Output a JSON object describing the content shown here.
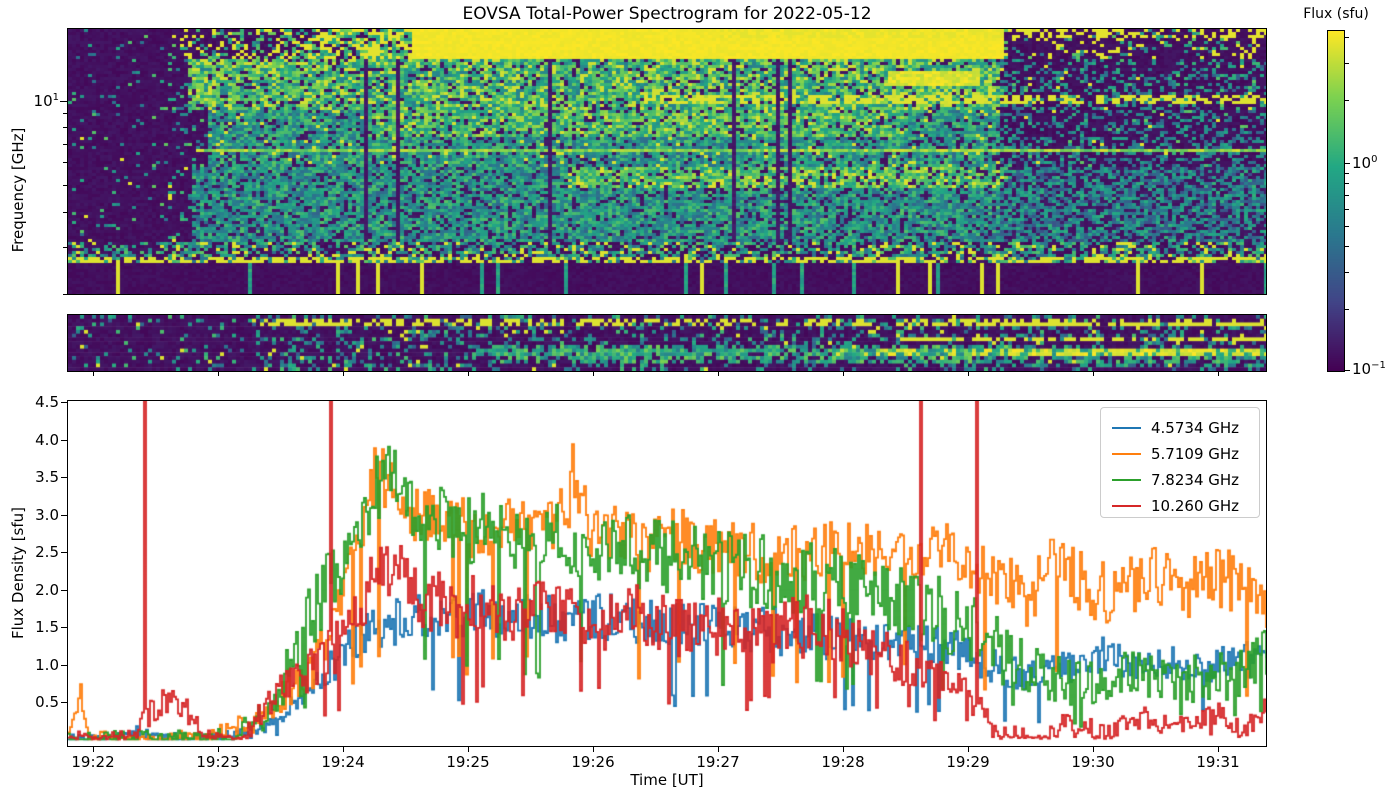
{
  "figure": {
    "title": "EOVSA Total-Power Spectrogram for 2022-05-12"
  },
  "spectrogram": {
    "ylabel": "Frequency [GHz]",
    "ytick_major": {
      "base": "10",
      "exp": "1"
    },
    "y_scale": "log",
    "freq_range_ghz": [
      2.0,
      18.0
    ]
  },
  "colorbar": {
    "label": "Flux (sfu)",
    "colormap": "viridis",
    "scale": "log",
    "range_sfu": [
      0.1,
      4.3
    ],
    "ticks": [
      {
        "base": "10",
        "exp": "0"
      },
      {
        "base": "10",
        "exp": "−1"
      }
    ]
  },
  "timeseries": {
    "ylabel": "Flux Density [sfu]",
    "xlabel": "Time [UT]",
    "yticks": [
      "0.5",
      "1.0",
      "1.5",
      "2.0",
      "2.5",
      "3.0",
      "3.5",
      "4.0",
      "4.5"
    ],
    "xticks": [
      "19:22",
      "19:23",
      "19:24",
      "19:25",
      "19:26",
      "19:27",
      "19:28",
      "19:29",
      "19:30",
      "19:31"
    ]
  },
  "chart_data": [
    {
      "type": "heatmap",
      "name": "total-power-spectrogram-main",
      "title": "EOVSA Total-Power Spectrogram for 2022-05-12",
      "ylabel": "Frequency [GHz]",
      "y_scale": "log",
      "y_range_ghz": [
        2.0,
        18.0
      ],
      "ytick_labels": [
        "10^1"
      ],
      "x_range_ut": [
        "19:21:47",
        "19:31:24"
      ],
      "xtick_labels": [
        "19:22",
        "19:23",
        "19:24",
        "19:25",
        "19:26",
        "19:27",
        "19:28",
        "19:29",
        "19:30",
        "19:31"
      ],
      "colormap": "viridis",
      "color_scale": "log",
      "clim_sfu": [
        0.1,
        4.3
      ],
      "colorbar_label": "Flux (sfu)",
      "features": [
        "quiet dark-purple background with sparse teal speckles before ~19:22:40",
        "broadband radio burst from ~19:22:40 to ~19:29:15 spanning 2-18 GHz",
        "saturated yellow band above ~13 GHz from ~19:24:30 to ~19:29:15",
        "dense green/teal emission between ~3 and ~10 GHz continuing to 19:31",
        "continuous bright horizontal streak near 6.7 GHz across the burst",
        "narrow dashed yellow streak near 10 GHz persisting after 19:29",
        "vertical RFI stripes (teal/yellow) in the lowest rows near 2 GHz"
      ],
      "render_hints": {
        "seed": 70,
        "cols": 300,
        "rows": 89
      }
    },
    {
      "type": "heatmap",
      "name": "total-power-spectrogram-low-band",
      "x_range_ut": [
        "19:21:47",
        "19:31:24"
      ],
      "colormap": "viridis",
      "color_scale": "log",
      "clim_sfu": [
        0.1,
        4.3
      ],
      "features": [
        "separate low-frequency band strip below the main spectrogram",
        "sparse speckles before ~19:23:20",
        "dashed yellow horizontal streaks in the upper rows after ~19:23",
        "dense teal emission 19:25-19:31",
        "continuous bright yellow horizontal lines in the right third after ~19:29"
      ],
      "render_hints": {
        "seed": 131,
        "cols": 300,
        "rows": 15
      }
    },
    {
      "type": "line",
      "name": "flux-density-timeseries",
      "xlabel": "Time [UT]",
      "ylabel": "Flux Density [sfu]",
      "ylim": [
        0,
        4.5
      ],
      "ytick_labels": [
        "0.5",
        "1.0",
        "1.5",
        "2.0",
        "2.5",
        "3.0",
        "3.5",
        "4.0",
        "4.5"
      ],
      "xtick_labels": [
        "19:22",
        "19:23",
        "19:24",
        "19:25",
        "19:26",
        "19:27",
        "19:28",
        "19:29",
        "19:30",
        "19:31"
      ],
      "x_minutes_after_1922_range": [
        -0.21,
        9.39
      ],
      "legend_position": "upper right",
      "series": [
        {
          "name": "4.5734 GHz",
          "color": "#1f77b4",
          "noise_amp": 0.32,
          "spikes": [],
          "envelope_t_min_value_sfu": [
            [
              -0.21,
              0.02
            ],
            [
              0.1,
              0.02
            ],
            [
              0.35,
              0.12
            ],
            [
              0.5,
              0.03
            ],
            [
              1.0,
              0.04
            ],
            [
              1.35,
              0.15
            ],
            [
              1.6,
              0.5
            ],
            [
              1.8,
              0.8
            ],
            [
              2.0,
              1.2
            ],
            [
              2.2,
              1.5
            ],
            [
              2.5,
              1.6
            ],
            [
              2.9,
              1.7
            ],
            [
              3.3,
              1.7
            ],
            [
              3.7,
              1.6
            ],
            [
              4.1,
              1.65
            ],
            [
              4.5,
              1.55
            ],
            [
              4.9,
              1.5
            ],
            [
              5.3,
              1.5
            ],
            [
              5.7,
              1.4
            ],
            [
              6.1,
              1.35
            ],
            [
              6.5,
              1.4
            ],
            [
              6.9,
              1.2
            ],
            [
              7.2,
              1.0
            ],
            [
              7.5,
              0.85
            ],
            [
              7.8,
              1.0
            ],
            [
              8.1,
              1.15
            ],
            [
              8.4,
              0.95
            ],
            [
              8.7,
              1.05
            ],
            [
              9.0,
              1.0
            ],
            [
              9.39,
              1.15
            ]
          ]
        },
        {
          "name": "5.7109 GHz",
          "color": "#ff7f0e",
          "noise_amp": 0.42,
          "spikes": [
            [
              -0.12,
              0.75
            ],
            [
              1.55,
              0.95
            ],
            [
              3.82,
              3.95
            ]
          ],
          "envelope_t_min_value_sfu": [
            [
              -0.21,
              0.03
            ],
            [
              -0.12,
              0.55
            ],
            [
              -0.05,
              0.03
            ],
            [
              0.4,
              0.03
            ],
            [
              0.9,
              0.05
            ],
            [
              1.3,
              0.3
            ],
            [
              1.55,
              0.7
            ],
            [
              1.75,
              1.0
            ],
            [
              1.95,
              1.7
            ],
            [
              2.1,
              2.7
            ],
            [
              2.25,
              3.6
            ],
            [
              2.4,
              3.4
            ],
            [
              2.6,
              3.0
            ],
            [
              2.85,
              2.8
            ],
            [
              3.1,
              2.85
            ],
            [
              3.4,
              2.8
            ],
            [
              3.65,
              2.9
            ],
            [
              3.82,
              3.2
            ],
            [
              4.0,
              2.8
            ],
            [
              4.3,
              2.65
            ],
            [
              4.6,
              2.7
            ],
            [
              4.9,
              2.6
            ],
            [
              5.2,
              2.55
            ],
            [
              5.5,
              2.45
            ],
            [
              5.8,
              2.5
            ],
            [
              6.1,
              2.6
            ],
            [
              6.4,
              2.55
            ],
            [
              6.7,
              2.5
            ],
            [
              7.0,
              2.45
            ],
            [
              7.25,
              2.1
            ],
            [
              7.5,
              1.9
            ],
            [
              7.65,
              2.5
            ],
            [
              7.9,
              2.1
            ],
            [
              8.15,
              1.9
            ],
            [
              8.45,
              2.3
            ],
            [
              8.7,
              2.0
            ],
            [
              8.95,
              2.2
            ],
            [
              9.2,
              2.1
            ],
            [
              9.39,
              1.8
            ]
          ]
        },
        {
          "name": "7.8234 GHz",
          "color": "#2ca02c",
          "noise_amp": 0.5,
          "spikes": [],
          "envelope_t_min_value_sfu": [
            [
              -0.21,
              0.02
            ],
            [
              0.8,
              0.03
            ],
            [
              1.15,
              0.1
            ],
            [
              1.4,
              0.45
            ],
            [
              1.6,
              1.1
            ],
            [
              1.8,
              1.9
            ],
            [
              2.0,
              2.4
            ],
            [
              2.15,
              3.0
            ],
            [
              2.3,
              3.5
            ],
            [
              2.45,
              3.3
            ],
            [
              2.7,
              3.0
            ],
            [
              3.0,
              2.85
            ],
            [
              3.3,
              2.75
            ],
            [
              3.6,
              2.8
            ],
            [
              3.9,
              2.65
            ],
            [
              4.2,
              2.55
            ],
            [
              4.5,
              2.5
            ],
            [
              4.8,
              2.4
            ],
            [
              5.1,
              2.3
            ],
            [
              5.4,
              2.25
            ],
            [
              5.7,
              2.15
            ],
            [
              6.0,
              2.05
            ],
            [
              6.3,
              1.95
            ],
            [
              6.6,
              1.8
            ],
            [
              6.9,
              1.6
            ],
            [
              7.15,
              1.3
            ],
            [
              7.4,
              1.0
            ],
            [
              7.7,
              0.8
            ],
            [
              8.0,
              0.75
            ],
            [
              8.3,
              0.95
            ],
            [
              8.6,
              0.8
            ],
            [
              8.9,
              0.85
            ],
            [
              9.15,
              0.9
            ],
            [
              9.39,
              1.25
            ]
          ]
        },
        {
          "name": "10.260 GHz",
          "color": "#d62728",
          "noise_amp": 0.42,
          "spikes": [
            [
              0.4,
              4.7
            ],
            [
              1.89,
              4.7
            ],
            [
              6.6,
              4.7
            ],
            [
              7.06,
              4.7
            ]
          ],
          "envelope_t_min_value_sfu": [
            [
              -0.21,
              0.03
            ],
            [
              0.25,
              0.04
            ],
            [
              0.5,
              0.45
            ],
            [
              0.65,
              0.55
            ],
            [
              0.8,
              0.3
            ],
            [
              0.95,
              0.05
            ],
            [
              1.2,
              0.1
            ],
            [
              1.45,
              0.6
            ],
            [
              1.65,
              0.85
            ],
            [
              1.85,
              1.1
            ],
            [
              2.05,
              1.6
            ],
            [
              2.25,
              2.2
            ],
            [
              2.4,
              2.3
            ],
            [
              2.6,
              1.95
            ],
            [
              2.85,
              1.75
            ],
            [
              3.1,
              1.85
            ],
            [
              3.35,
              1.7
            ],
            [
              3.6,
              1.75
            ],
            [
              3.85,
              1.7
            ],
            [
              4.1,
              1.6
            ],
            [
              4.35,
              1.75
            ],
            [
              4.6,
              1.5
            ],
            [
              4.85,
              1.55
            ],
            [
              5.1,
              1.5
            ],
            [
              5.35,
              1.4
            ],
            [
              5.6,
              1.5
            ],
            [
              5.85,
              1.55
            ],
            [
              6.1,
              1.3
            ],
            [
              6.35,
              1.1
            ],
            [
              6.6,
              0.95
            ],
            [
              6.85,
              0.75
            ],
            [
              7.05,
              0.5
            ],
            [
              7.2,
              0.12
            ],
            [
              7.5,
              0.1
            ],
            [
              7.8,
              0.25
            ],
            [
              8.1,
              0.15
            ],
            [
              8.4,
              0.3
            ],
            [
              8.7,
              0.2
            ],
            [
              9.0,
              0.35
            ],
            [
              9.2,
              0.15
            ],
            [
              9.39,
              0.45
            ]
          ]
        }
      ]
    }
  ]
}
